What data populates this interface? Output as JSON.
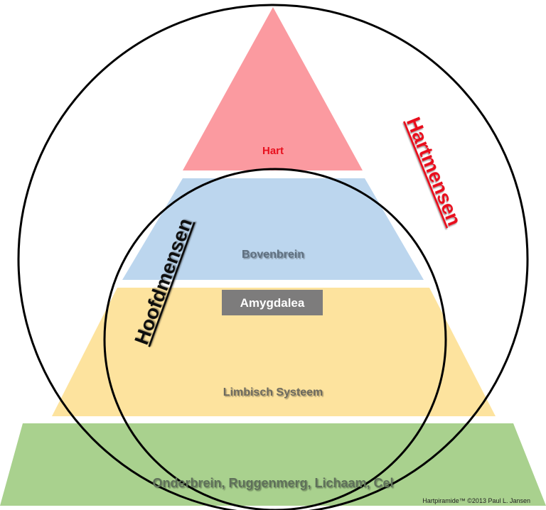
{
  "layers": {
    "hart": {
      "label": "Hart",
      "fill": "#fb9aa0",
      "text_color": "#e8101e"
    },
    "bovenbrein": {
      "label": "Bovenbrein",
      "fill": "#bcd6ee",
      "text_color": "#5f6f80"
    },
    "amygdalea": {
      "label": "Amygdalea",
      "fill": "#7d7c7c",
      "text_color": "#ffffff"
    },
    "limbisch": {
      "label": "Limbisch Systeem",
      "fill": "#fde39e",
      "text_color": "#6d6a5e"
    },
    "onderbrein": {
      "label": "Onderbrein, Ruggenmerg, Lichaam, Cel",
      "fill": "#a9d18e",
      "text_color": "#5e705a"
    }
  },
  "circles": {
    "hartmensen": {
      "label": "Hartmensen",
      "text_color": "#e8101e"
    },
    "hoofdmensen": {
      "label": "Hoofdmensen",
      "text_color": "#111111"
    }
  },
  "copyright": "Hartpiramide™ ©2013 Paul L. Jansen"
}
